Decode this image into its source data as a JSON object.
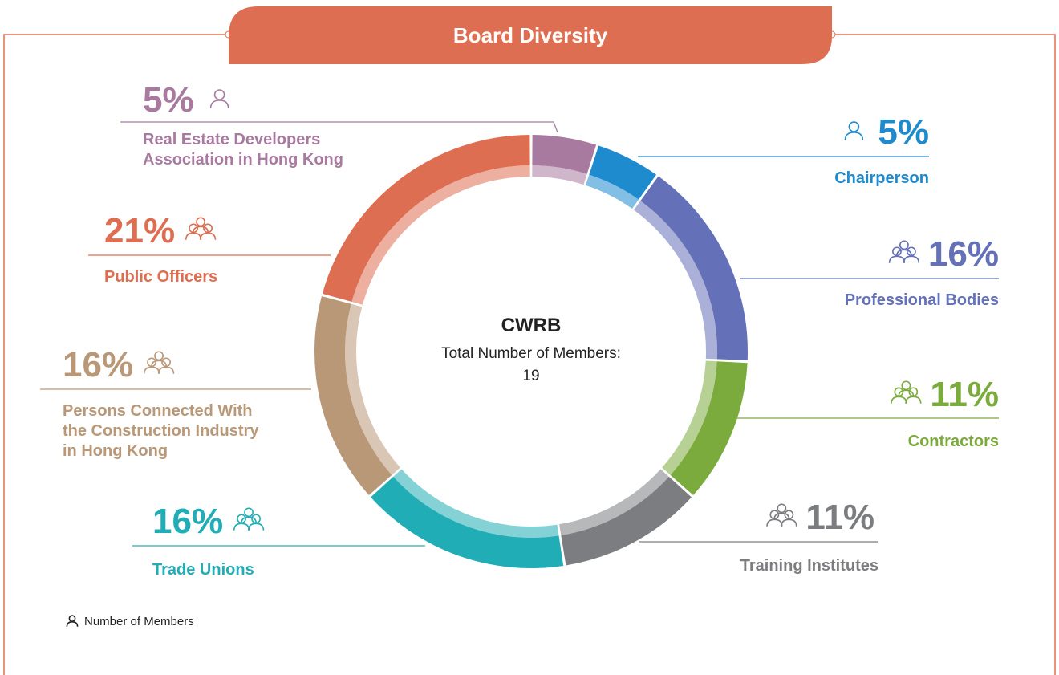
{
  "chart_data": {
    "type": "donut",
    "title": "Board Diversity",
    "center_title": "CWRB",
    "center_label": "Total Number of Members:",
    "center_value": "19",
    "categories": [
      "Real Estate Developers Association in Hong Kong",
      "Chairperson",
      "Professional Bodies",
      "Contractors",
      "Training Institutes",
      "Trade Unions",
      "Persons Connected With the Construction Industry in Hong Kong",
      "Public Officers"
    ],
    "values": [
      5,
      5,
      16,
      11,
      11,
      16,
      16,
      21
    ],
    "value_labels": [
      "5%",
      "5%",
      "16%",
      "11%",
      "11%",
      "16%",
      "16%",
      "21%"
    ],
    "colors": [
      "#a97aa0",
      "#1e8bcf",
      "#6470b8",
      "#7bab3c",
      "#7c7d80",
      "#20adb5",
      "#b99878",
      "#de6e52"
    ],
    "legend_note": "Number of Members"
  }
}
